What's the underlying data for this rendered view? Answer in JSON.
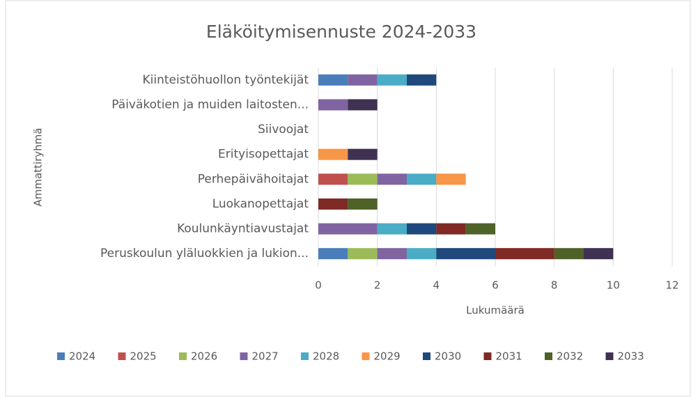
{
  "chart_data": {
    "type": "bar",
    "orientation": "horizontal",
    "stacked": true,
    "title": "Eläköitymisennuste 2024-2033",
    "xlabel": "Lukumäärä",
    "ylabel": "Ammattiryhmä",
    "categories": [
      "Kiinteistöhuollon työntekijät",
      "Päiväkotien ja muiden laitosten...",
      "Siivoojat",
      "Erityisopettajat",
      "Perhepäivähoitajat",
      "Luokanopettajat",
      "Koulunkäyntiavustajat",
      "Peruskoulun yläluokkien ja lukion..."
    ],
    "series": [
      {
        "name": "2024",
        "color": "#4a7ebb",
        "values": [
          1,
          0,
          0,
          0,
          0,
          0,
          0,
          1
        ]
      },
      {
        "name": "2025",
        "color": "#c0504d",
        "values": [
          0,
          0,
          0,
          0,
          1,
          0,
          0,
          0
        ]
      },
      {
        "name": "2026",
        "color": "#9bbb59",
        "values": [
          0,
          0,
          0,
          0,
          1,
          0,
          0,
          1
        ]
      },
      {
        "name": "2027",
        "color": "#8064a2",
        "values": [
          1,
          1,
          0,
          0,
          1,
          0,
          2,
          1
        ]
      },
      {
        "name": "2028",
        "color": "#4bacc6",
        "values": [
          1,
          0,
          0,
          0,
          1,
          0,
          1,
          1
        ]
      },
      {
        "name": "2029",
        "color": "#f79646",
        "values": [
          0,
          0,
          0,
          1,
          1,
          0,
          0,
          0
        ]
      },
      {
        "name": "2030",
        "color": "#1f497d",
        "values": [
          1,
          0,
          0,
          0,
          0,
          0,
          1,
          2
        ]
      },
      {
        "name": "2031",
        "color": "#7f2a25",
        "values": [
          0,
          0,
          0,
          0,
          0,
          1,
          1,
          2
        ]
      },
      {
        "name": "2032",
        "color": "#4f6228",
        "values": [
          0,
          0,
          0,
          0,
          0,
          1,
          1,
          1
        ]
      },
      {
        "name": "2033",
        "color": "#3f3151",
        "values": [
          0,
          1,
          0,
          1,
          0,
          0,
          0,
          1
        ]
      }
    ],
    "xlim": [
      0,
      12
    ],
    "xticks": [
      0,
      2,
      4,
      6,
      8,
      10,
      12
    ],
    "grid": true,
    "legend": "bottom"
  }
}
